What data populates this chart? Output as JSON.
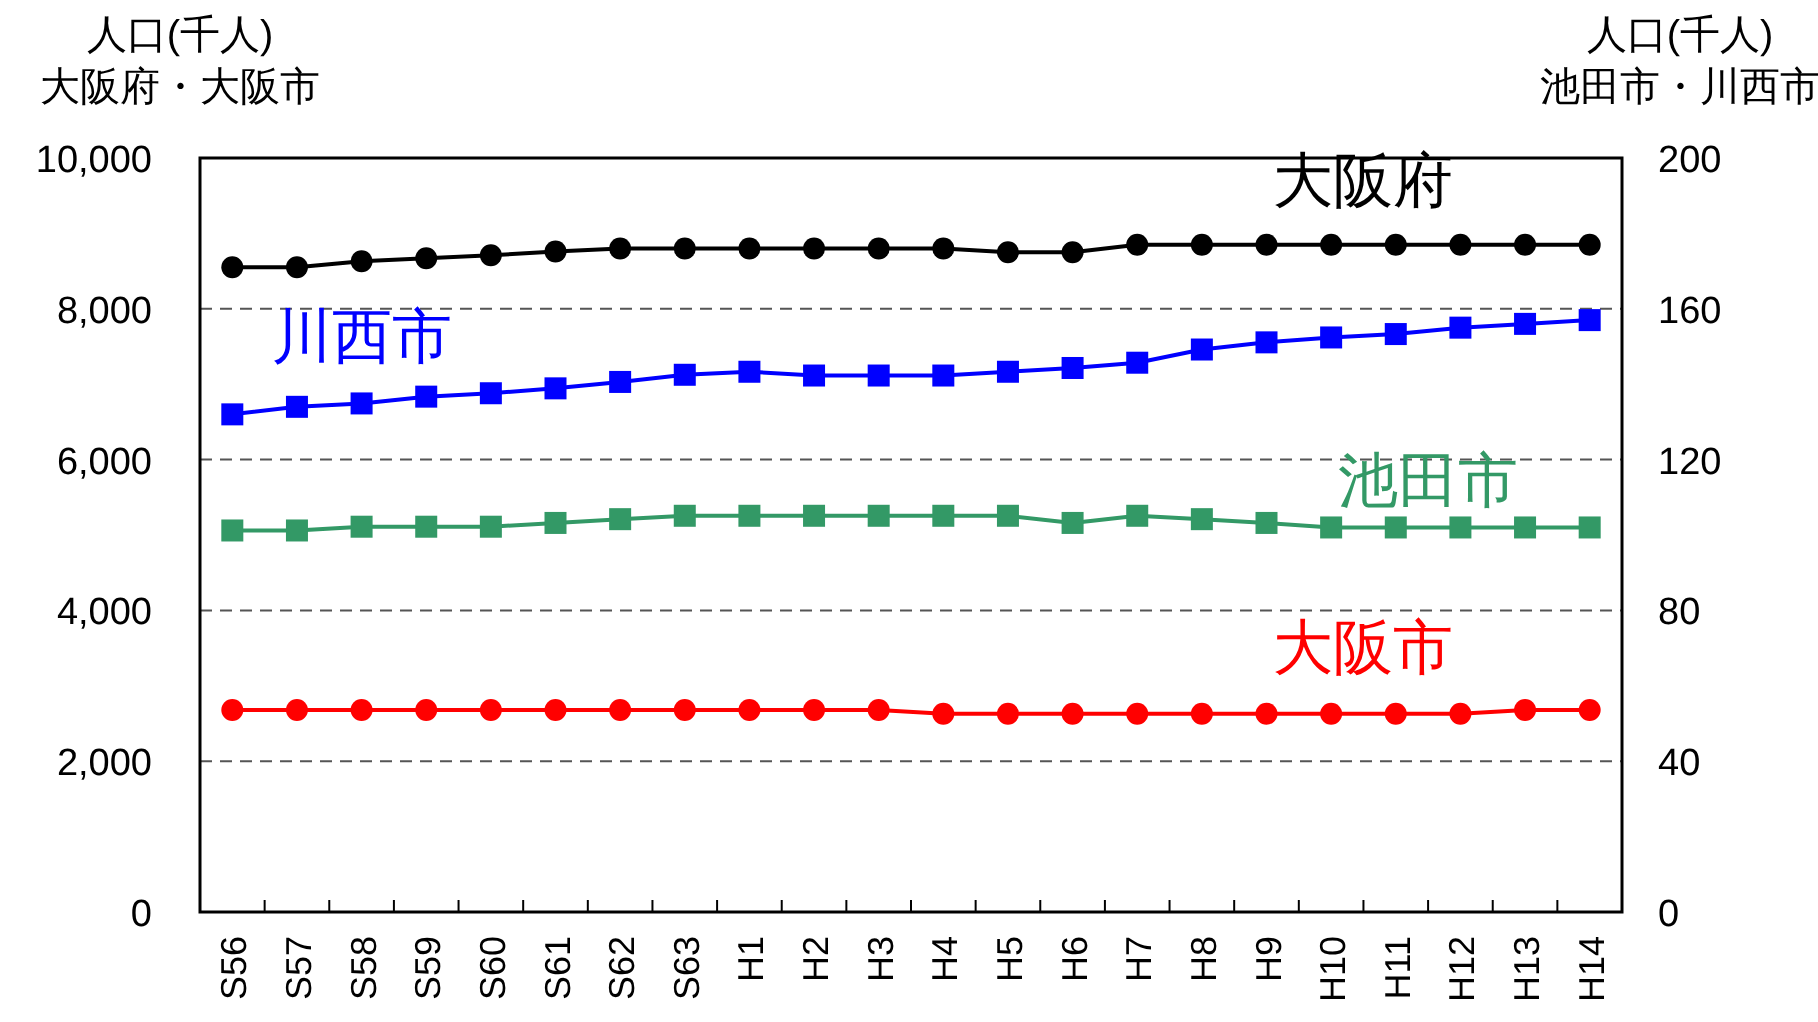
{
  "chart_data": {
    "type": "line",
    "ylabel": "人口(千人)\n大阪府・大阪市",
    "y2label": "人口(千人)\n池田市・川西市",
    "categories": [
      "S56",
      "S57",
      "S58",
      "S59",
      "S60",
      "S61",
      "S62",
      "S63",
      "H1",
      "H2",
      "H3",
      "H4",
      "H5",
      "H6",
      "H7",
      "H8",
      "H9",
      "H10",
      "H11",
      "H12",
      "H13",
      "H14"
    ],
    "series": [
      {
        "name": "大阪府",
        "color": "#000000",
        "marker": "circle",
        "values": [
          8550,
          8550,
          8630,
          8670,
          8710,
          8760,
          8800,
          8800,
          8800,
          8800,
          8800,
          8800,
          8750,
          8750,
          8850,
          8850,
          8850,
          8850,
          8850,
          8850,
          8850,
          8850
        ]
      },
      {
        "name": "川西市",
        "color": "#0000ff",
        "marker": "square",
        "axis": "y2",
        "values": [
          132.0,
          134.0,
          134.9,
          136.7,
          137.6,
          138.9,
          140.6,
          142.5,
          143.3,
          142.3,
          142.3,
          142.3,
          143.3,
          144.3,
          145.7,
          149.2,
          151.1,
          152.4,
          153.3,
          155.0,
          156.0,
          157.0
        ]
      },
      {
        "name": "池田市",
        "color": "#339966",
        "marker": "square",
        "axis": "y2",
        "values": [
          101.2,
          101.2,
          102.2,
          102.2,
          102.2,
          103.2,
          104.2,
          105.1,
          105.1,
          105.1,
          105.1,
          105.1,
          105.1,
          103.2,
          105.1,
          104.2,
          103.2,
          102.0,
          102.0,
          102.0,
          102.0,
          102.0
        ]
      },
      {
        "name": "大阪市",
        "color": "#ff0000",
        "marker": "circle",
        "values": [
          2680,
          2680,
          2680,
          2680,
          2680,
          2680,
          2680,
          2680,
          2680,
          2680,
          2680,
          2630,
          2630,
          2630,
          2630,
          2630,
          2630,
          2630,
          2630,
          2630,
          2680,
          2680
        ]
      }
    ],
    "ylim": [
      0,
      10000
    ],
    "yticks": [
      0,
      {
        "value": 2000,
        "label": "2,000"
      },
      {
        "value": 4000,
        "label": "4,000"
      },
      {
        "value": 6000,
        "label": "6,000"
      },
      {
        "value": 8000,
        "label": "8,000"
      },
      {
        "value": 10000,
        "label": "10,000"
      }
    ],
    "y2lim": [
      0,
      200
    ],
    "y2ticks": [
      0,
      40,
      80,
      120,
      160,
      200
    ],
    "grid": "y",
    "legend": false
  }
}
